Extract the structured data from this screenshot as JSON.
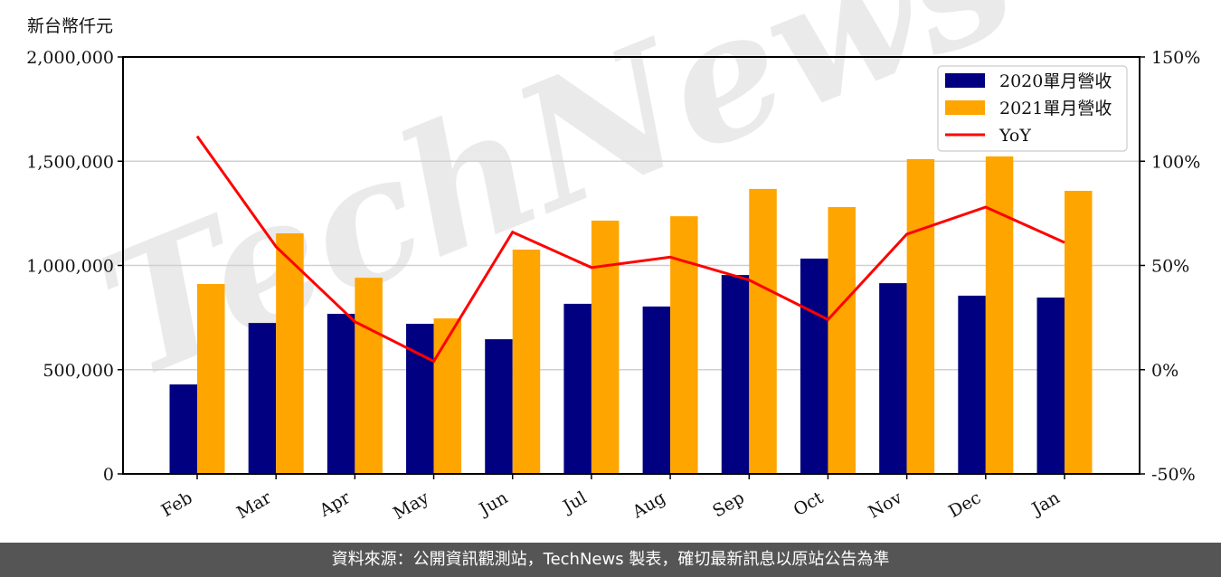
{
  "chart_data": {
    "type": "bar",
    "combo": "bar+line (dual axis)",
    "title": "",
    "ylabel": "新台幣仟元",
    "y2label": "",
    "xlabel": "",
    "categories": [
      "Feb",
      "Mar",
      "Apr",
      "May",
      "Jun",
      "Jul",
      "Aug",
      "Sep",
      "Oct",
      "Nov",
      "Dec",
      "Jan"
    ],
    "series": [
      {
        "name": "2020單月營收",
        "type": "bar",
        "axis": "left",
        "color": "#000080",
        "values": [
          429000,
          724000,
          768000,
          720000,
          646000,
          816000,
          803000,
          954000,
          1033000,
          915000,
          855000,
          846000
        ]
      },
      {
        "name": "2021單月營收",
        "type": "bar",
        "axis": "left",
        "color": "#FFA500",
        "values": [
          911000,
          1154000,
          941000,
          746000,
          1076000,
          1215000,
          1236000,
          1367000,
          1280000,
          1510000,
          1523000,
          1358000
        ]
      },
      {
        "name": "YoY",
        "type": "line",
        "axis": "right",
        "color": "#FF0000",
        "unit": "%",
        "values": [
          112,
          59,
          23,
          4,
          66,
          49,
          54,
          43,
          24,
          65,
          78,
          61
        ]
      }
    ],
    "ylim": [
      0,
      2000000
    ],
    "y_ticks": [
      "0",
      "500,000",
      "1,000,000",
      "1,500,000",
      "2,000,000"
    ],
    "y2lim": [
      -50,
      150
    ],
    "y2_ticks": [
      "-50%",
      "0%",
      "50%",
      "100%",
      "150%"
    ],
    "grid": "horizontal",
    "legend_position": "upper right",
    "watermark": "TechNews"
  },
  "unit_label": "新台幣仟元",
  "footer": "資料來源：公開資訊觀測站，TechNews 製表，確切最新訊息以原站公告為準"
}
